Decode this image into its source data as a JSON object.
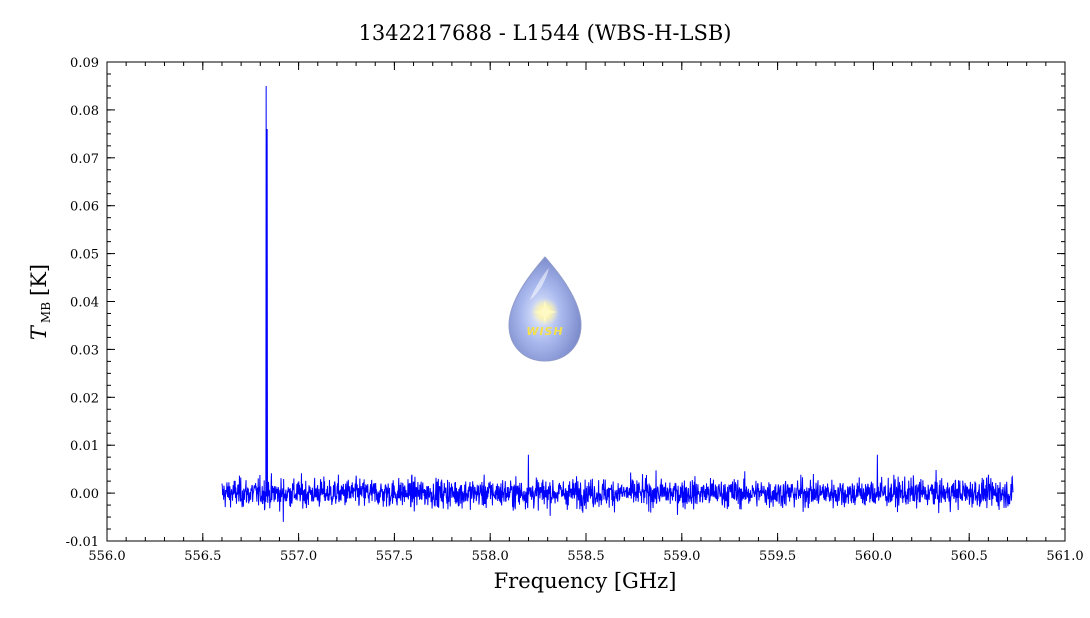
{
  "chart_data": {
    "type": "line",
    "title": "1342217688 - L1544 (WBS-H-LSB)",
    "xlabel": "Frequency [GHz]",
    "ylabel_main": "T",
    "ylabel_sub": "MB",
    "ylabel_unit": "[K]",
    "xlim": [
      556.0,
      561.0
    ],
    "ylim": [
      -0.01,
      0.09
    ],
    "x_ticks": [
      "556.0",
      "556.5",
      "557.0",
      "557.5",
      "558.0",
      "558.5",
      "559.0",
      "559.5",
      "560.0",
      "560.5",
      "561.0"
    ],
    "y_ticks": [
      "-0.01",
      "0.00",
      "0.01",
      "0.02",
      "0.03",
      "0.04",
      "0.05",
      "0.06",
      "0.07",
      "0.08",
      "0.09"
    ],
    "grid": false,
    "series": [
      {
        "color": "#0000ff",
        "x_start": 556.6,
        "x_end": 560.73,
        "baseline": 0.0,
        "noise_rms": 0.0015,
        "features": [
          {
            "x": 556.83,
            "y": 0.085
          },
          {
            "x": 556.835,
            "y": 0.076
          },
          {
            "x": 556.92,
            "y": -0.006
          },
          {
            "x": 558.2,
            "y": 0.008
          },
          {
            "x": 560.02,
            "y": 0.008
          }
        ]
      }
    ]
  },
  "logo": {
    "text": "WISH"
  }
}
